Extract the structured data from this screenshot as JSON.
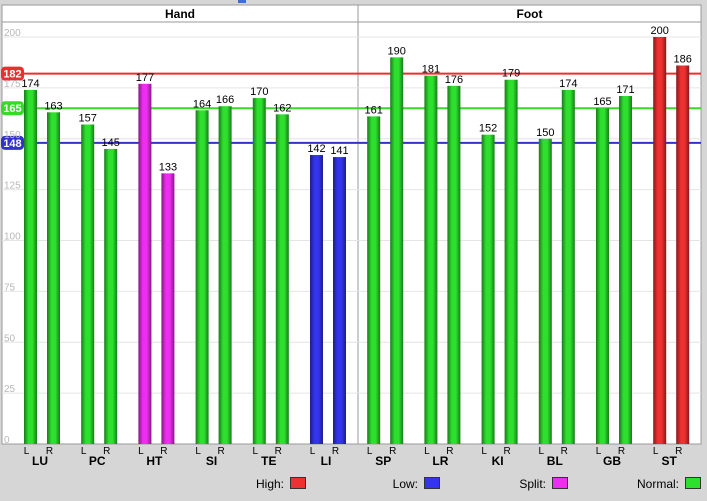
{
  "chart_data": {
    "type": "bar",
    "sections": [
      {
        "name": "Hand",
        "channels": [
          "LU",
          "PC",
          "HT",
          "SI",
          "TE",
          "LI"
        ]
      },
      {
        "name": "Foot",
        "channels": [
          "SP",
          "LR",
          "KI",
          "BL",
          "GB",
          "ST"
        ]
      }
    ],
    "side_labels": [
      "L",
      "R"
    ],
    "bars": [
      {
        "channel": "LU",
        "side": "L",
        "value": 174,
        "status": "normal"
      },
      {
        "channel": "LU",
        "side": "R",
        "value": 163,
        "status": "normal"
      },
      {
        "channel": "PC",
        "side": "L",
        "value": 157,
        "status": "normal"
      },
      {
        "channel": "PC",
        "side": "R",
        "value": 145,
        "status": "normal"
      },
      {
        "channel": "HT",
        "side": "L",
        "value": 177,
        "status": "split"
      },
      {
        "channel": "HT",
        "side": "R",
        "value": 133,
        "status": "split"
      },
      {
        "channel": "SI",
        "side": "L",
        "value": 164,
        "status": "normal"
      },
      {
        "channel": "SI",
        "side": "R",
        "value": 166,
        "status": "normal"
      },
      {
        "channel": "TE",
        "side": "L",
        "value": 170,
        "status": "normal"
      },
      {
        "channel": "TE",
        "side": "R",
        "value": 162,
        "status": "normal"
      },
      {
        "channel": "LI",
        "side": "L",
        "value": 142,
        "status": "low"
      },
      {
        "channel": "LI",
        "side": "R",
        "value": 141,
        "status": "low"
      },
      {
        "channel": "SP",
        "side": "L",
        "value": 161,
        "status": "normal"
      },
      {
        "channel": "SP",
        "side": "R",
        "value": 190,
        "status": "normal"
      },
      {
        "channel": "LR",
        "side": "L",
        "value": 181,
        "status": "normal"
      },
      {
        "channel": "LR",
        "side": "R",
        "value": 176,
        "status": "normal"
      },
      {
        "channel": "KI",
        "side": "L",
        "value": 152,
        "status": "normal"
      },
      {
        "channel": "KI",
        "side": "R",
        "value": 179,
        "status": "normal"
      },
      {
        "channel": "BL",
        "side": "L",
        "value": 150,
        "status": "normal"
      },
      {
        "channel": "BL",
        "side": "R",
        "value": 174,
        "status": "normal"
      },
      {
        "channel": "GB",
        "side": "L",
        "value": 165,
        "status": "normal"
      },
      {
        "channel": "GB",
        "side": "R",
        "value": 171,
        "status": "normal"
      },
      {
        "channel": "ST",
        "side": "L",
        "value": 200,
        "status": "high"
      },
      {
        "channel": "ST",
        "side": "R",
        "value": 186,
        "status": "high"
      }
    ],
    "y_ticks": [
      0,
      25,
      50,
      75,
      100,
      125,
      150,
      175,
      200
    ],
    "ylim": [
      0,
      200
    ],
    "reference_lines": [
      {
        "label": "182",
        "value": 182,
        "color": "#ee2e2e"
      },
      {
        "label": "165",
        "value": 165,
        "color": "#39d92a"
      },
      {
        "label": "148",
        "value": 148,
        "color": "#3333cc"
      }
    ],
    "grid": true,
    "legend_position": "bottom",
    "legend": [
      {
        "label": "High:",
        "status": "high"
      },
      {
        "label": "Low:",
        "status": "low"
      },
      {
        "label": "Split:",
        "status": "split"
      },
      {
        "label": "Normal:",
        "status": "normal"
      }
    ],
    "status_colors": {
      "normal": "#2ee02e",
      "low": "#3434ee",
      "split": "#ee2eee",
      "high": "#ee3030"
    }
  }
}
